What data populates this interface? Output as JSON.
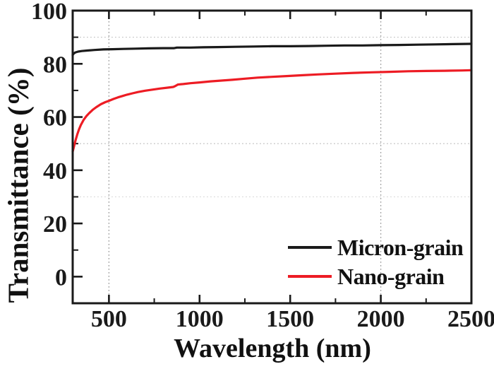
{
  "figure": {
    "background": "#ffffff",
    "axis_color": "#1a1a1a",
    "accent_red": "#ed1c24"
  },
  "chart_data": {
    "type": "line",
    "title": "",
    "xlabel": "Wavelength (nm)",
    "ylabel": "Transmittance (%)",
    "xlim": [
      300,
      2500
    ],
    "ylim": [
      -10,
      100
    ],
    "x_major_ticks": [
      500,
      1000,
      1500,
      2000,
      2500
    ],
    "x_minor_ticks": [
      750,
      1250,
      1750,
      2250
    ],
    "y_major_ticks": [
      0,
      20,
      40,
      60,
      80,
      100
    ],
    "y_minor_ticks": [
      10,
      30,
      50,
      70,
      90
    ],
    "x_tick_labels": [
      "500",
      "1000",
      "1500",
      "2000",
      "2500"
    ],
    "y_tick_labels": [
      "0",
      "20",
      "40",
      "60",
      "80",
      "100"
    ],
    "grid": {
      "vertical": [
        {
          "x": 500,
          "color": "#9c9c9c"
        },
        {
          "x": 2000,
          "color": "#9c9c9c"
        }
      ],
      "horizontal": [
        {
          "y": 90,
          "color": "#c8c8c8"
        },
        {
          "y": 50,
          "color": "#c8c8c8"
        },
        {
          "y": 30,
          "color": "#dedede"
        }
      ]
    },
    "legend": {
      "position": "bottom-right",
      "border": false
    },
    "series": [
      {
        "name": "Micron-grain",
        "color": "#1a1a1a",
        "points": [
          [
            300,
            83.3
          ],
          [
            306,
            83.9
          ],
          [
            315,
            84.3
          ],
          [
            330,
            84.6
          ],
          [
            350,
            84.8
          ],
          [
            380,
            85.0
          ],
          [
            420,
            85.2
          ],
          [
            470,
            85.4
          ],
          [
            520,
            85.5
          ],
          [
            580,
            85.6
          ],
          [
            650,
            85.7
          ],
          [
            720,
            85.8
          ],
          [
            800,
            85.9
          ],
          [
            860,
            85.9
          ],
          [
            875,
            86.1
          ],
          [
            950,
            86.1
          ],
          [
            1020,
            86.2
          ],
          [
            1100,
            86.3
          ],
          [
            1200,
            86.4
          ],
          [
            1300,
            86.5
          ],
          [
            1400,
            86.6
          ],
          [
            1500,
            86.6
          ],
          [
            1600,
            86.7
          ],
          [
            1700,
            86.8
          ],
          [
            1800,
            86.9
          ],
          [
            1900,
            86.9
          ],
          [
            2000,
            87.0
          ],
          [
            2100,
            87.1
          ],
          [
            2200,
            87.2
          ],
          [
            2300,
            87.3
          ],
          [
            2400,
            87.4
          ],
          [
            2500,
            87.5
          ]
        ]
      },
      {
        "name": "Nano-grain",
        "color": "#ed1c24",
        "points": [
          [
            300,
            47.0
          ],
          [
            308,
            49.2
          ],
          [
            316,
            51.3
          ],
          [
            325,
            53.4
          ],
          [
            335,
            55.4
          ],
          [
            345,
            57.0
          ],
          [
            360,
            58.9
          ],
          [
            375,
            60.3
          ],
          [
            390,
            61.4
          ],
          [
            410,
            62.7
          ],
          [
            430,
            63.7
          ],
          [
            455,
            64.8
          ],
          [
            480,
            65.6
          ],
          [
            500,
            66.1
          ],
          [
            525,
            66.8
          ],
          [
            550,
            67.4
          ],
          [
            575,
            67.9
          ],
          [
            600,
            68.4
          ],
          [
            630,
            68.9
          ],
          [
            660,
            69.4
          ],
          [
            700,
            69.9
          ],
          [
            740,
            70.3
          ],
          [
            780,
            70.7
          ],
          [
            820,
            71.0
          ],
          [
            855,
            71.3
          ],
          [
            865,
            71.6
          ],
          [
            880,
            72.2
          ],
          [
            910,
            72.4
          ],
          [
            950,
            72.7
          ],
          [
            1000,
            73.0
          ],
          [
            1060,
            73.4
          ],
          [
            1120,
            73.7
          ],
          [
            1180,
            74.0
          ],
          [
            1250,
            74.4
          ],
          [
            1320,
            74.8
          ],
          [
            1400,
            75.1
          ],
          [
            1480,
            75.4
          ],
          [
            1560,
            75.7
          ],
          [
            1650,
            76.0
          ],
          [
            1750,
            76.3
          ],
          [
            1850,
            76.6
          ],
          [
            1950,
            76.8
          ],
          [
            2050,
            77.0
          ],
          [
            2150,
            77.2
          ],
          [
            2250,
            77.3
          ],
          [
            2350,
            77.4
          ],
          [
            2450,
            77.5
          ],
          [
            2500,
            77.6
          ]
        ]
      }
    ]
  }
}
